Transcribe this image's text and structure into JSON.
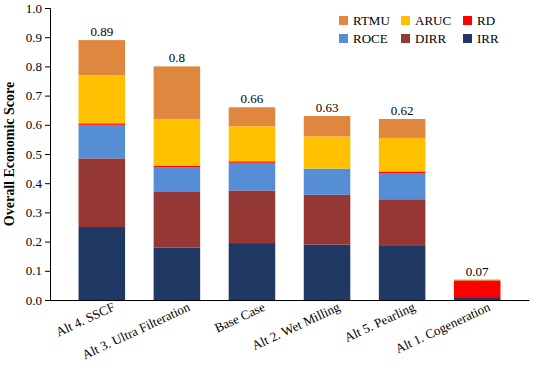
{
  "chart_data": {
    "type": "bar",
    "stacked": true,
    "legend": "top-right",
    "grid": false,
    "y_label": "Overall Economic Score",
    "categories": [
      "Alt 4. SSCF",
      "Alt 3. Ultra Filteration",
      "Base Case",
      "Alt 2. Wet Milling",
      "Alt 5. Pearling",
      "Alt 1. Cogeneration"
    ],
    "series": [
      {
        "name": "IRR",
        "color": "#1f3864",
        "values": [
          0.25,
          0.18,
          0.195,
          0.19,
          0.185,
          0.01
        ]
      },
      {
        "name": "DIRR",
        "color": "#953735",
        "values": [
          0.235,
          0.19,
          0.18,
          0.17,
          0.16,
          0
        ]
      },
      {
        "name": "ROCE",
        "color": "#558ed5",
        "values": [
          0.115,
          0.085,
          0.095,
          0.09,
          0.09,
          0
        ]
      },
      {
        "name": "RD",
        "color": "#ff0000",
        "values": [
          0.005,
          0.005,
          0.005,
          0,
          0.005,
          0.055
        ]
      },
      {
        "name": "ARUC",
        "color": "#ffc000",
        "values": [
          0.165,
          0.16,
          0.12,
          0.11,
          0.115,
          0
        ]
      },
      {
        "name": "RTMU",
        "color": "#e0873f",
        "values": [
          0.12,
          0.18,
          0.065,
          0.07,
          0.065,
          0.005
        ]
      }
    ],
    "totals": [
      0.89,
      0.8,
      0.66,
      0.63,
      0.62,
      0.07
    ],
    "ylim": [
      0,
      1
    ],
    "yticks": [
      {
        "value": 0,
        "label": "0.0"
      },
      0.1,
      0.2,
      0.3,
      0.4,
      0.5,
      0.6,
      0.7,
      0.8,
      0.9,
      {
        "value": 1,
        "label": "1.0"
      }
    ]
  }
}
